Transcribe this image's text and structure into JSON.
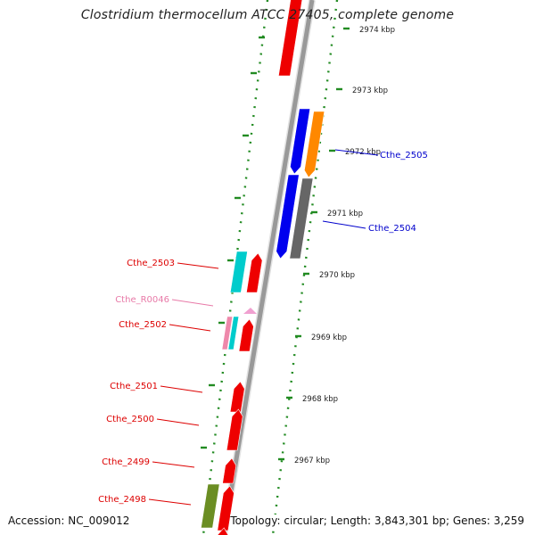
{
  "title": "Clostridium thermocellum ATCC 27405, complete genome",
  "accession": "Accession: NC_009012",
  "topology": "Topology: circular; Length: 3,843,301 bp; Genes: 3,259",
  "colors": {
    "backbone": "#999999",
    "tick": "#228B22",
    "forward_label": "#0000cc",
    "reverse_label": "#dd0000",
    "rna_label": "#e87aa8"
  },
  "ticks": [
    {
      "label": "2974 kbp"
    },
    {
      "label": "2973 kbp"
    },
    {
      "label": "2972 kbp"
    },
    {
      "label": "2971 kbp"
    },
    {
      "label": "2970 kbp"
    },
    {
      "label": "2969 kbp"
    },
    {
      "label": "2968 kbp"
    },
    {
      "label": "2967 kbp"
    }
  ],
  "genes": [
    {
      "label": "Cthe_2505",
      "strand": "forward",
      "color": "#0000ee"
    },
    {
      "label": "Cthe_2504",
      "strand": "forward",
      "color": "#0000ee"
    },
    {
      "label": "Cthe_2503",
      "strand": "reverse",
      "color": "#dd0000"
    },
    {
      "label": "Cthe_R0046",
      "strand": "reverse",
      "color": "#e87aa8"
    },
    {
      "label": "Cthe_2502",
      "strand": "reverse",
      "color": "#dd0000"
    },
    {
      "label": "Cthe_2501",
      "strand": "reverse",
      "color": "#dd0000"
    },
    {
      "label": "Cthe_2500",
      "strand": "reverse",
      "color": "#dd0000"
    },
    {
      "label": "Cthe_2499",
      "strand": "reverse",
      "color": "#dd0000"
    },
    {
      "label": "Cthe_2498",
      "strand": "reverse",
      "color": "#dd0000"
    }
  ],
  "feature_colors": [
    "#ee0000",
    "#0000ee",
    "#ff8800",
    "#666666",
    "#00cccc",
    "#ee88aa",
    "#6b8e23",
    "#f0a0d0"
  ]
}
